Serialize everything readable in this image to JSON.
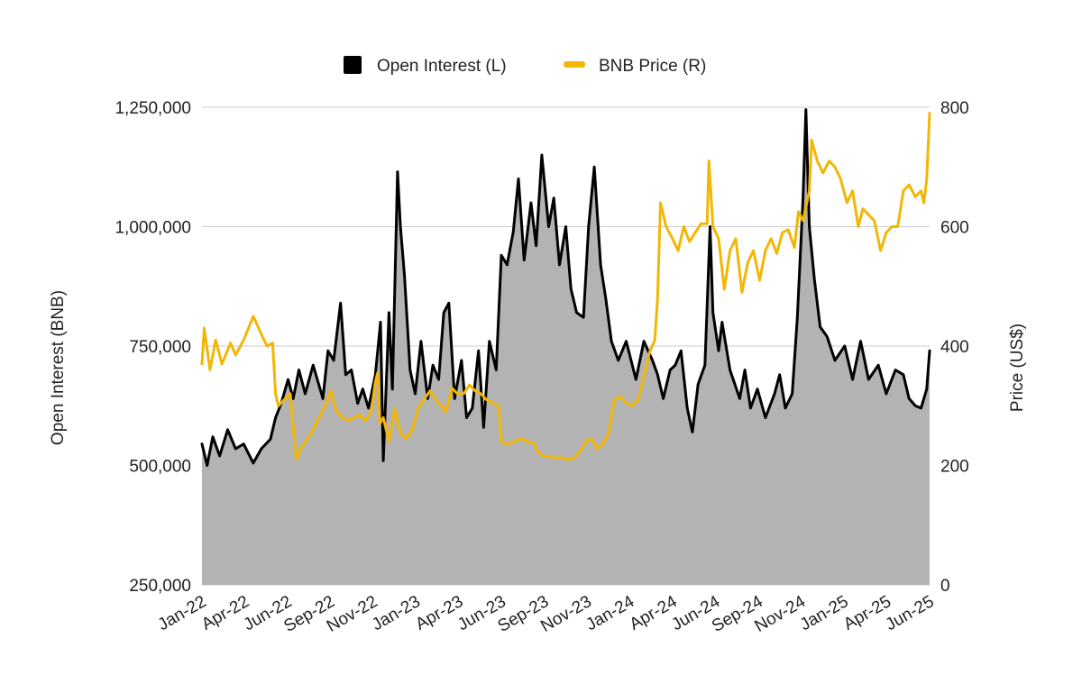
{
  "chart_data": {
    "type": "area",
    "title": "",
    "legend_position": "top",
    "grid": true,
    "x_tick_labels": [
      "Jan-22",
      "Apr-22",
      "Jun-22",
      "Sep-22",
      "Nov-22",
      "Jan-23",
      "Apr-23",
      "Jun-23",
      "Sep-23",
      "Nov-23",
      "Jan-24",
      "Apr-24",
      "Jun-24",
      "Sep-24",
      "Nov-24",
      "Jan-25",
      "Apr-25",
      "Jun-25"
    ],
    "x_range": [
      "2022-01-01",
      "2025-06-30"
    ],
    "y_left": {
      "label": "Open Interest (BNB)",
      "ylim": [
        250000,
        1250000
      ],
      "ticks": [
        250000,
        500000,
        750000,
        1000000,
        1250000
      ],
      "tick_labels": [
        "250,000",
        "500,000",
        "750,000",
        "1,000,000",
        "1,250,000"
      ]
    },
    "y_right": {
      "label": "Price (US$)",
      "ylim": [
        0,
        800
      ],
      "ticks": [
        0,
        200,
        400,
        600,
        800
      ],
      "tick_labels": [
        "0",
        "200",
        "400",
        "600",
        "800"
      ]
    },
    "series": [
      {
        "name": "Open Interest (L)",
        "axis": "left",
        "render": "area",
        "line_color": "#000000",
        "fill_color": "#b3b3b3",
        "points": [
          [
            "2022-01-01",
            545000
          ],
          [
            "2022-01-10",
            500000
          ],
          [
            "2022-01-20",
            560000
          ],
          [
            "2022-02-01",
            520000
          ],
          [
            "2022-02-15",
            575000
          ],
          [
            "2022-03-01",
            535000
          ],
          [
            "2022-03-15",
            545000
          ],
          [
            "2022-04-01",
            505000
          ],
          [
            "2022-04-15",
            535000
          ],
          [
            "2022-05-01",
            555000
          ],
          [
            "2022-05-10",
            600000
          ],
          [
            "2022-05-20",
            630000
          ],
          [
            "2022-06-01",
            680000
          ],
          [
            "2022-06-10",
            640000
          ],
          [
            "2022-06-20",
            700000
          ],
          [
            "2022-07-01",
            650000
          ],
          [
            "2022-07-15",
            710000
          ],
          [
            "2022-08-01",
            640000
          ],
          [
            "2022-08-10",
            740000
          ],
          [
            "2022-08-20",
            720000
          ],
          [
            "2022-09-01",
            840000
          ],
          [
            "2022-09-10",
            690000
          ],
          [
            "2022-09-20",
            700000
          ],
          [
            "2022-10-01",
            630000
          ],
          [
            "2022-10-10",
            660000
          ],
          [
            "2022-10-20",
            620000
          ],
          [
            "2022-11-01",
            690000
          ],
          [
            "2022-11-10",
            800000
          ],
          [
            "2022-11-15",
            510000
          ],
          [
            "2022-11-25",
            820000
          ],
          [
            "2022-12-01",
            660000
          ],
          [
            "2022-12-10",
            1115000
          ],
          [
            "2022-12-15",
            1000000
          ],
          [
            "2022-12-22",
            900000
          ],
          [
            "2023-01-01",
            700000
          ],
          [
            "2023-01-10",
            650000
          ],
          [
            "2023-01-20",
            760000
          ],
          [
            "2023-02-01",
            640000
          ],
          [
            "2023-02-10",
            710000
          ],
          [
            "2023-02-20",
            680000
          ],
          [
            "2023-03-01",
            820000
          ],
          [
            "2023-03-10",
            840000
          ],
          [
            "2023-03-20",
            640000
          ],
          [
            "2023-04-01",
            720000
          ],
          [
            "2023-04-10",
            600000
          ],
          [
            "2023-04-20",
            620000
          ],
          [
            "2023-05-01",
            740000
          ],
          [
            "2023-05-10",
            580000
          ],
          [
            "2023-05-20",
            760000
          ],
          [
            "2023-06-01",
            700000
          ],
          [
            "2023-06-10",
            940000
          ],
          [
            "2023-06-20",
            920000
          ],
          [
            "2023-07-01",
            990000
          ],
          [
            "2023-07-10",
            1100000
          ],
          [
            "2023-07-20",
            930000
          ],
          [
            "2023-08-01",
            1050000
          ],
          [
            "2023-08-10",
            960000
          ],
          [
            "2023-08-20",
            1150000
          ],
          [
            "2023-09-01",
            1000000
          ],
          [
            "2023-09-10",
            1060000
          ],
          [
            "2023-09-20",
            920000
          ],
          [
            "2023-10-01",
            1000000
          ],
          [
            "2023-10-10",
            870000
          ],
          [
            "2023-10-20",
            820000
          ],
          [
            "2023-11-01",
            810000
          ],
          [
            "2023-11-10",
            1000000
          ],
          [
            "2023-11-20",
            1125000
          ],
          [
            "2023-12-01",
            920000
          ],
          [
            "2023-12-10",
            850000
          ],
          [
            "2023-12-20",
            760000
          ],
          [
            "2024-01-01",
            720000
          ],
          [
            "2024-01-15",
            760000
          ],
          [
            "2024-02-01",
            680000
          ],
          [
            "2024-02-15",
            760000
          ],
          [
            "2024-03-01",
            720000
          ],
          [
            "2024-03-10",
            690000
          ],
          [
            "2024-03-20",
            640000
          ],
          [
            "2024-04-01",
            700000
          ],
          [
            "2024-04-10",
            710000
          ],
          [
            "2024-04-20",
            740000
          ],
          [
            "2024-05-01",
            620000
          ],
          [
            "2024-05-10",
            570000
          ],
          [
            "2024-05-20",
            670000
          ],
          [
            "2024-06-01",
            710000
          ],
          [
            "2024-06-10",
            1000000
          ],
          [
            "2024-06-15",
            820000
          ],
          [
            "2024-06-25",
            740000
          ],
          [
            "2024-07-01",
            800000
          ],
          [
            "2024-07-15",
            700000
          ],
          [
            "2024-08-01",
            640000
          ],
          [
            "2024-08-10",
            700000
          ],
          [
            "2024-08-20",
            620000
          ],
          [
            "2024-09-01",
            660000
          ],
          [
            "2024-09-15",
            600000
          ],
          [
            "2024-10-01",
            650000
          ],
          [
            "2024-10-10",
            690000
          ],
          [
            "2024-10-20",
            620000
          ],
          [
            "2024-11-01",
            650000
          ],
          [
            "2024-11-10",
            810000
          ],
          [
            "2024-11-20",
            1060000
          ],
          [
            "2024-11-25",
            1245000
          ],
          [
            "2024-12-01",
            1000000
          ],
          [
            "2024-12-10",
            890000
          ],
          [
            "2024-12-20",
            790000
          ],
          [
            "2025-01-01",
            770000
          ],
          [
            "2025-01-15",
            720000
          ],
          [
            "2025-02-01",
            750000
          ],
          [
            "2025-02-15",
            680000
          ],
          [
            "2025-03-01",
            760000
          ],
          [
            "2025-03-15",
            680000
          ],
          [
            "2025-04-01",
            710000
          ],
          [
            "2025-04-15",
            650000
          ],
          [
            "2025-05-01",
            700000
          ],
          [
            "2025-05-15",
            690000
          ],
          [
            "2025-05-25",
            640000
          ],
          [
            "2025-06-05",
            625000
          ],
          [
            "2025-06-15",
            620000
          ],
          [
            "2025-06-25",
            660000
          ],
          [
            "2025-06-30",
            740000
          ]
        ]
      },
      {
        "name": "BNB Price (R)",
        "axis": "right",
        "render": "line",
        "line_color": "#f2b705",
        "points": [
          [
            "2022-01-01",
            370
          ],
          [
            "2022-01-05",
            430
          ],
          [
            "2022-01-15",
            360
          ],
          [
            "2022-01-25",
            410
          ],
          [
            "2022-02-05",
            370
          ],
          [
            "2022-02-20",
            405
          ],
          [
            "2022-03-01",
            385
          ],
          [
            "2022-03-15",
            410
          ],
          [
            "2022-04-01",
            450
          ],
          [
            "2022-04-15",
            420
          ],
          [
            "2022-04-25",
            400
          ],
          [
            "2022-05-05",
            405
          ],
          [
            "2022-05-10",
            320
          ],
          [
            "2022-05-15",
            300
          ],
          [
            "2022-05-25",
            310
          ],
          [
            "2022-06-05",
            320
          ],
          [
            "2022-06-15",
            210
          ],
          [
            "2022-06-25",
            230
          ],
          [
            "2022-07-05",
            245
          ],
          [
            "2022-07-15",
            260
          ],
          [
            "2022-07-25",
            280
          ],
          [
            "2022-08-05",
            300
          ],
          [
            "2022-08-15",
            325
          ],
          [
            "2022-08-25",
            290
          ],
          [
            "2022-09-05",
            280
          ],
          [
            "2022-09-15",
            275
          ],
          [
            "2022-09-25",
            280
          ],
          [
            "2022-10-05",
            285
          ],
          [
            "2022-10-15",
            275
          ],
          [
            "2022-10-25",
            290
          ],
          [
            "2022-11-01",
            340
          ],
          [
            "2022-11-05",
            355
          ],
          [
            "2022-11-09",
            270
          ],
          [
            "2022-11-15",
            280
          ],
          [
            "2022-11-25",
            240
          ],
          [
            "2022-12-05",
            295
          ],
          [
            "2022-12-15",
            255
          ],
          [
            "2022-12-25",
            245
          ],
          [
            "2023-01-05",
            260
          ],
          [
            "2023-01-15",
            295
          ],
          [
            "2023-01-25",
            310
          ],
          [
            "2023-02-05",
            325
          ],
          [
            "2023-02-15",
            310
          ],
          [
            "2023-02-25",
            300
          ],
          [
            "2023-03-05",
            290
          ],
          [
            "2023-03-15",
            330
          ],
          [
            "2023-03-25",
            320
          ],
          [
            "2023-04-05",
            320
          ],
          [
            "2023-04-15",
            335
          ],
          [
            "2023-04-25",
            325
          ],
          [
            "2023-05-05",
            320
          ],
          [
            "2023-05-15",
            310
          ],
          [
            "2023-05-25",
            305
          ],
          [
            "2023-06-05",
            300
          ],
          [
            "2023-06-10",
            240
          ],
          [
            "2023-06-20",
            235
          ],
          [
            "2023-07-01",
            240
          ],
          [
            "2023-07-15",
            245
          ],
          [
            "2023-07-25",
            240
          ],
          [
            "2023-08-05",
            238
          ],
          [
            "2023-08-15",
            220
          ],
          [
            "2023-08-25",
            215
          ],
          [
            "2023-09-05",
            215
          ],
          [
            "2023-09-15",
            212
          ],
          [
            "2023-09-25",
            213
          ],
          [
            "2023-10-05",
            210
          ],
          [
            "2023-10-15",
            212
          ],
          [
            "2023-10-25",
            222
          ],
          [
            "2023-11-05",
            240
          ],
          [
            "2023-11-15",
            245
          ],
          [
            "2023-11-25",
            228
          ],
          [
            "2023-12-05",
            235
          ],
          [
            "2023-12-15",
            255
          ],
          [
            "2023-12-25",
            310
          ],
          [
            "2024-01-05",
            315
          ],
          [
            "2024-01-15",
            305
          ],
          [
            "2024-01-25",
            300
          ],
          [
            "2024-02-05",
            310
          ],
          [
            "2024-02-15",
            350
          ],
          [
            "2024-02-25",
            390
          ],
          [
            "2024-03-05",
            410
          ],
          [
            "2024-03-10",
            480
          ],
          [
            "2024-03-15",
            640
          ],
          [
            "2024-03-25",
            600
          ],
          [
            "2024-04-05",
            580
          ],
          [
            "2024-04-15",
            560
          ],
          [
            "2024-04-25",
            600
          ],
          [
            "2024-05-05",
            575
          ],
          [
            "2024-05-15",
            590
          ],
          [
            "2024-05-25",
            605
          ],
          [
            "2024-06-05",
            605
          ],
          [
            "2024-06-08",
            710
          ],
          [
            "2024-06-15",
            600
          ],
          [
            "2024-06-25",
            580
          ],
          [
            "2024-07-05",
            495
          ],
          [
            "2024-07-15",
            560
          ],
          [
            "2024-07-25",
            580
          ],
          [
            "2024-08-05",
            490
          ],
          [
            "2024-08-15",
            540
          ],
          [
            "2024-08-25",
            560
          ],
          [
            "2024-09-05",
            510
          ],
          [
            "2024-09-15",
            560
          ],
          [
            "2024-09-25",
            580
          ],
          [
            "2024-10-05",
            555
          ],
          [
            "2024-10-15",
            590
          ],
          [
            "2024-10-25",
            595
          ],
          [
            "2024-11-05",
            565
          ],
          [
            "2024-11-12",
            625
          ],
          [
            "2024-11-20",
            610
          ],
          [
            "2024-12-01",
            660
          ],
          [
            "2024-12-05",
            745
          ],
          [
            "2024-12-15",
            710
          ],
          [
            "2024-12-25",
            690
          ],
          [
            "2025-01-05",
            710
          ],
          [
            "2025-01-15",
            700
          ],
          [
            "2025-01-25",
            680
          ],
          [
            "2025-02-05",
            640
          ],
          [
            "2025-02-15",
            660
          ],
          [
            "2025-02-25",
            600
          ],
          [
            "2025-03-05",
            630
          ],
          [
            "2025-03-15",
            620
          ],
          [
            "2025-03-25",
            610
          ],
          [
            "2025-04-05",
            560
          ],
          [
            "2025-04-15",
            590
          ],
          [
            "2025-04-25",
            600
          ],
          [
            "2025-05-05",
            600
          ],
          [
            "2025-05-15",
            660
          ],
          [
            "2025-05-25",
            670
          ],
          [
            "2025-06-05",
            650
          ],
          [
            "2025-06-15",
            660
          ],
          [
            "2025-06-20",
            640
          ],
          [
            "2025-06-25",
            680
          ],
          [
            "2025-06-30",
            790
          ]
        ]
      }
    ]
  }
}
